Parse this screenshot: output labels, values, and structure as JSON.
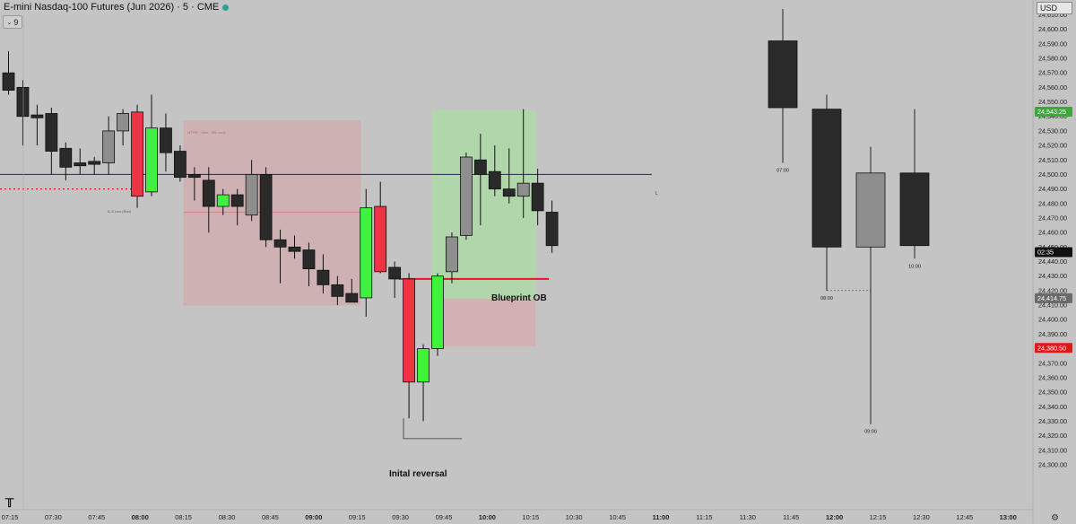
{
  "header": {
    "symbol_title": "E-mini Nasdaq-100 Futures (Jun 2026) · 5 · CME",
    "indicator_count": "9",
    "currency": "USD"
  },
  "icons": {
    "logo": "tradingview-logo-icon",
    "settings": "gear-icon",
    "status": "status-dot-icon",
    "collapse": "chevron-icon"
  },
  "colors": {
    "background": "#c4c4c4",
    "bull": "#3ef23e",
    "bear_strong": "#ee3344",
    "bear": "#2a2a2a",
    "neutral": "#8e8e8e",
    "crosshair": "#222a44",
    "level_green": "#3aa83a",
    "level_red": "#e01818"
  },
  "annotations": {
    "blueprint": "Blueprint OB",
    "reversal": "Inital reversal",
    "mtfb": "MTFM · 15m · 382 zone",
    "low_label": "8–5 Low (Sun)",
    "hline_marker": "L"
  },
  "chart_data": {
    "type": "candlestick",
    "y_range": [
      24290,
      24620
    ],
    "y_ticks": [
      24610,
      24600,
      24590,
      24580,
      24570,
      24560,
      24550,
      24540,
      24530,
      24520,
      24510,
      24500,
      24490,
      24480,
      24470,
      24460,
      24450,
      24440,
      24430,
      24420,
      24410,
      24400,
      24390,
      24380,
      24370,
      24360,
      24350,
      24340,
      24330,
      24320,
      24310,
      24300
    ],
    "x_ticks": [
      {
        "label": "07:15",
        "bold": false
      },
      {
        "label": "07:30",
        "bold": false
      },
      {
        "label": "07:45",
        "bold": false
      },
      {
        "label": "08:00",
        "bold": true
      },
      {
        "label": "08:15",
        "bold": false
      },
      {
        "label": "08:30",
        "bold": false
      },
      {
        "label": "08:45",
        "bold": false
      },
      {
        "label": "09:00",
        "bold": true
      },
      {
        "label": "09:15",
        "bold": false
      },
      {
        "label": "09:30",
        "bold": false
      },
      {
        "label": "09:45",
        "bold": false
      },
      {
        "label": "10:00",
        "bold": true
      },
      {
        "label": "10:15",
        "bold": false
      },
      {
        "label": "10:30",
        "bold": false
      },
      {
        "label": "10:45",
        "bold": false
      },
      {
        "label": "11:00",
        "bold": true
      },
      {
        "label": "11:15",
        "bold": false
      },
      {
        "label": "11:30",
        "bold": false
      },
      {
        "label": "11:45",
        "bold": false
      },
      {
        "label": "12:00",
        "bold": true
      },
      {
        "label": "12:15",
        "bold": false
      },
      {
        "label": "12:30",
        "bold": false
      },
      {
        "label": "12:45",
        "bold": false
      },
      {
        "label": "13:00",
        "bold": true
      }
    ],
    "price_badges": [
      {
        "value": "24,543.25",
        "price": 24543.25,
        "color": "#3aa83a"
      },
      {
        "value": "02:35",
        "price": 24446.5,
        "color": "#111111"
      },
      {
        "value": "24,414.75",
        "price": 24414.75,
        "color": "#6a6a6a"
      },
      {
        "value": "24,380.50",
        "price": 24380.5,
        "color": "#e01818"
      }
    ],
    "five_min_candles": [
      {
        "o": 24570,
        "h": 24585,
        "l": 24555,
        "c": 24558,
        "color": "bear"
      },
      {
        "o": 24560,
        "h": 24565,
        "l": 24520,
        "c": 24540,
        "color": "bear"
      },
      {
        "o": 24541,
        "h": 24548,
        "l": 24520,
        "c": 24539,
        "color": "bear"
      },
      {
        "o": 24542,
        "h": 24546,
        "l": 24500,
        "c": 24516,
        "color": "bear"
      },
      {
        "o": 24518,
        "h": 24522,
        "l": 24496,
        "c": 24505,
        "color": "bear"
      },
      {
        "o": 24506,
        "h": 24518,
        "l": 24500,
        "c": 24508,
        "color": "bear"
      },
      {
        "o": 24507,
        "h": 24512,
        "l": 24500,
        "c": 24509,
        "color": "bear"
      },
      {
        "o": 24508,
        "h": 24540,
        "l": 24500,
        "c": 24530,
        "color": "neutral"
      },
      {
        "o": 24530,
        "h": 24545,
        "l": 24520,
        "c": 24542,
        "color": "neutral"
      },
      {
        "o": 24543,
        "h": 24548,
        "l": 24477,
        "c": 24485,
        "color": "bear_strong"
      },
      {
        "o": 24488,
        "h": 24555,
        "l": 24485,
        "c": 24532,
        "color": "bull"
      },
      {
        "o": 24532,
        "h": 24542,
        "l": 24502,
        "c": 24515,
        "color": "bear"
      },
      {
        "o": 24516,
        "h": 24520,
        "l": 24495,
        "c": 24498,
        "color": "bear"
      },
      {
        "o": 24500,
        "h": 24505,
        "l": 24482,
        "c": 24498,
        "color": "bear"
      },
      {
        "o": 24496,
        "h": 24505,
        "l": 24460,
        "c": 24478,
        "color": "bear"
      },
      {
        "o": 24478,
        "h": 24490,
        "l": 24472,
        "c": 24486,
        "color": "bull"
      },
      {
        "o": 24486,
        "h": 24490,
        "l": 24465,
        "c": 24478,
        "color": "bear"
      },
      {
        "o": 24472,
        "h": 24510,
        "l": 24468,
        "c": 24500,
        "color": "neutral"
      },
      {
        "o": 24500,
        "h": 24505,
        "l": 24450,
        "c": 24455,
        "color": "bear"
      },
      {
        "o": 24455,
        "h": 24462,
        "l": 24425,
        "c": 24450,
        "color": "bear"
      },
      {
        "o": 24450,
        "h": 24458,
        "l": 24442,
        "c": 24447,
        "color": "bear"
      },
      {
        "o": 24448,
        "h": 24453,
        "l": 24423,
        "c": 24435,
        "color": "bear"
      },
      {
        "o": 24434,
        "h": 24445,
        "l": 24418,
        "c": 24424,
        "color": "bear"
      },
      {
        "o": 24424,
        "h": 24430,
        "l": 24410,
        "c": 24416,
        "color": "bear"
      },
      {
        "o": 24418,
        "h": 24428,
        "l": 24412,
        "c": 24412,
        "color": "bear"
      },
      {
        "o": 24415,
        "h": 24490,
        "l": 24402,
        "c": 24477,
        "color": "bull"
      },
      {
        "o": 24478,
        "h": 24495,
        "l": 24432,
        "c": 24433,
        "color": "bear_strong"
      },
      {
        "o": 24436,
        "h": 24440,
        "l": 24415,
        "c": 24428,
        "color": "bear"
      },
      {
        "o": 24428,
        "h": 24432,
        "l": 24332,
        "c": 24357,
        "color": "bear_strong"
      },
      {
        "o": 24357,
        "h": 24383,
        "l": 24330,
        "c": 24380,
        "color": "bull"
      },
      {
        "o": 24380,
        "h": 24432,
        "l": 24375,
        "c": 24430,
        "color": "bull"
      },
      {
        "o": 24433,
        "h": 24460,
        "l": 24425,
        "c": 24457,
        "color": "neutral"
      },
      {
        "o": 24458,
        "h": 24515,
        "l": 24455,
        "c": 24512,
        "color": "neutral"
      },
      {
        "o": 24510,
        "h": 24528,
        "l": 24465,
        "c": 24500,
        "color": "bear"
      },
      {
        "o": 24502,
        "h": 24520,
        "l": 24485,
        "c": 24490,
        "color": "bear"
      },
      {
        "o": 24490,
        "h": 24518,
        "l": 24480,
        "c": 24485,
        "color": "bear"
      },
      {
        "o": 24485,
        "h": 24545,
        "l": 24470,
        "c": 24494,
        "color": "neutral"
      },
      {
        "o": 24494,
        "h": 24504,
        "l": 24465,
        "c": 24475,
        "color": "bear"
      },
      {
        "o": 24474,
        "h": 24482,
        "l": 24446,
        "c": 24451,
        "color": "bear"
      }
    ],
    "one_hour_candles": [
      {
        "o": 24592,
        "h": 24614,
        "l": 24508,
        "c": 24546,
        "label": "07:00",
        "color": "bear"
      },
      {
        "o": 24545,
        "h": 24555,
        "l": 24420,
        "c": 24450,
        "label": "08:00",
        "color": "bear"
      },
      {
        "o": 24450,
        "h": 24519,
        "l": 24328,
        "c": 24501,
        "label": "09:00",
        "color": "neutral"
      },
      {
        "o": 24501,
        "h": 24545,
        "l": 24442,
        "c": 24451,
        "label": "10:00",
        "color": "bear"
      }
    ],
    "zones": [
      {
        "name": "mtfb-zone",
        "x1": 205,
        "x2": 402,
        "top": 24537,
        "bottom": 24410,
        "mid": 24474,
        "color": "#d4a8aa"
      },
      {
        "name": "green-ob-zone",
        "x1": 482,
        "x2": 597,
        "top": 24544,
        "bottom": 24414,
        "color": "#a8e0a0"
      },
      {
        "name": "red-ob-zone",
        "x1": 482,
        "x2": 597,
        "top": 24414,
        "bottom": 24382,
        "color": "#d9a8aa"
      }
    ],
    "levels": [
      {
        "name": "horizontal-ray",
        "price": 24500,
        "x1": 0,
        "x2": 727,
        "color": "#222a44"
      },
      {
        "name": "blueprint-line",
        "price": 24428,
        "x1": 445,
        "x2": 612,
        "color": "#e01818"
      },
      {
        "name": "low-dotted-line",
        "price": 24490,
        "x1": 0,
        "x2": 152,
        "color": "#e01818"
      }
    ]
  }
}
